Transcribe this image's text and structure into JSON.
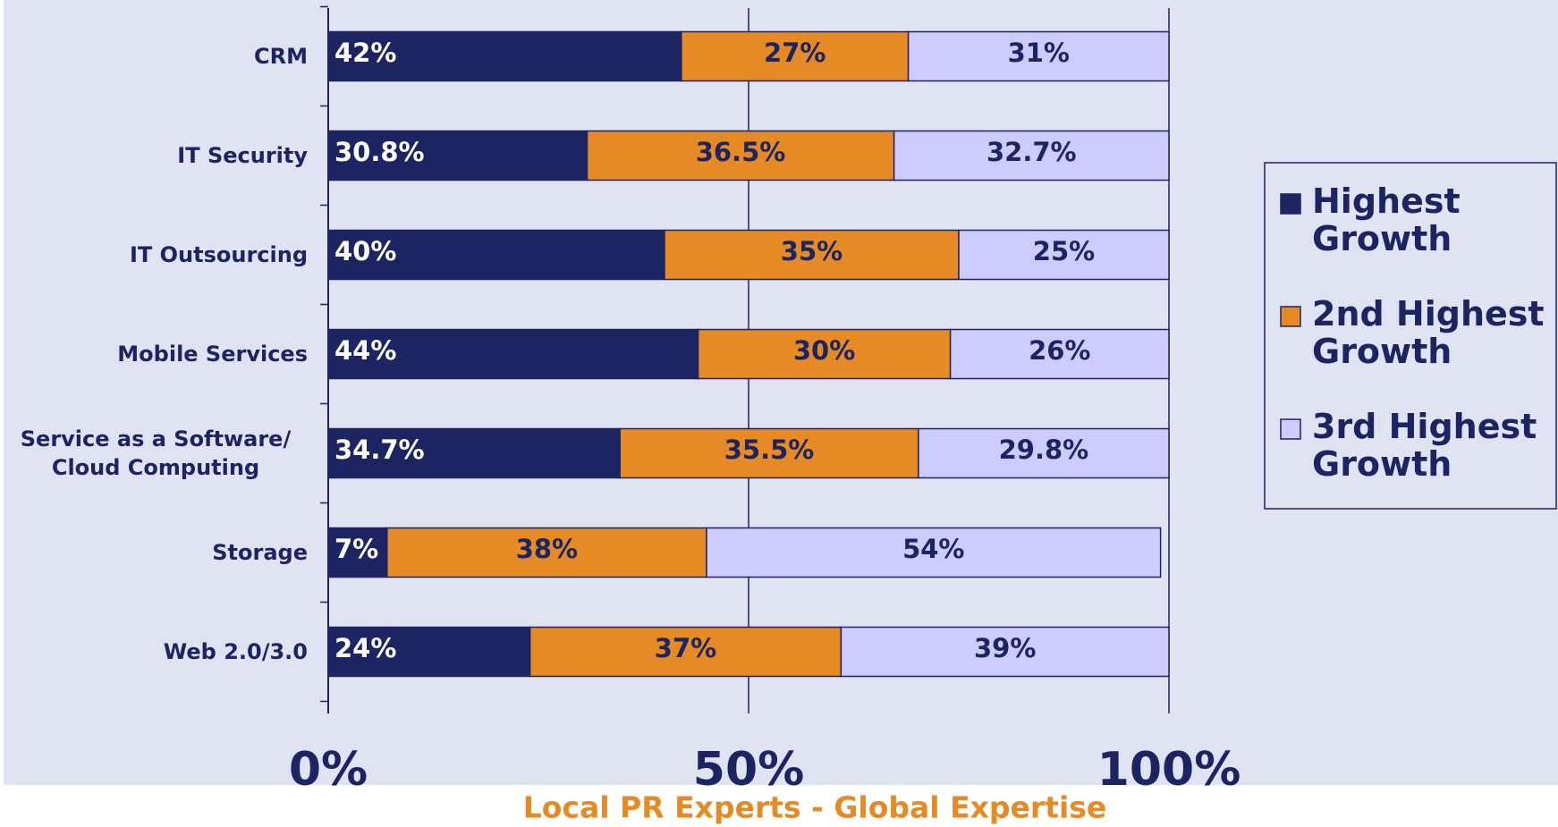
{
  "chart_data": {
    "type": "stacked-bar-horizontal",
    "categories": [
      "CRM",
      "IT Security",
      "IT Outsourcing",
      "Mobile Services",
      "Service as a Software/ Cloud Computing",
      "Storage",
      "Web 2.0/3.0"
    ],
    "series": [
      {
        "name": "Highest Growth",
        "color": "#1c2562",
        "values": [
          42,
          30.8,
          40,
          44,
          34.7,
          7,
          24
        ],
        "value_labels": [
          "42%",
          "30.8%",
          "40%",
          "44%",
          "34.7%",
          "7%",
          "24%"
        ]
      },
      {
        "name": "2nd Highest Growth",
        "color": "#e58a24",
        "values": [
          27,
          36.5,
          35,
          30,
          35.5,
          38,
          37
        ],
        "value_labels": [
          "27%",
          "36.5%",
          "35%",
          "30%",
          "35.5%",
          "38%",
          "37%"
        ]
      },
      {
        "name": "3rd Highest Growth",
        "color": "#ccccff",
        "values": [
          31,
          32.7,
          25,
          26,
          29.8,
          54,
          39
        ],
        "value_labels": [
          "31%",
          "32.7%",
          "25%",
          "26%",
          "29.8%",
          "54%",
          "39%"
        ]
      }
    ],
    "xlim": [
      0,
      100
    ],
    "xticks": [
      {
        "value": 0,
        "label": "0%"
      },
      {
        "value": 50,
        "label": "50%"
      },
      {
        "value": 100,
        "label": "100%"
      }
    ],
    "grid": true,
    "legend": "right",
    "footer": "Local PR Experts - Global Expertise"
  }
}
